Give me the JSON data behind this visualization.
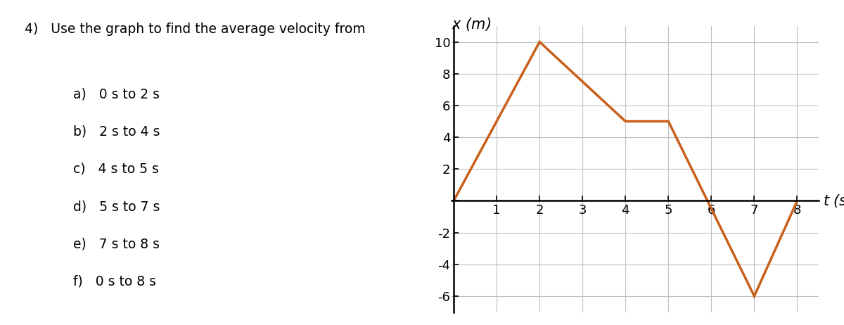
{
  "t_values": [
    0,
    2,
    4,
    5,
    7,
    8
  ],
  "x_values": [
    0,
    10,
    5,
    5,
    -6,
    0
  ],
  "line_color": "#C8601A",
  "line_width": 2.5,
  "xlim": [
    -0.05,
    8.5
  ],
  "ylim": [
    -7,
    11
  ],
  "xticks": [
    1,
    2,
    3,
    4,
    5,
    6,
    7,
    8
  ],
  "yticks": [
    -6,
    -4,
    -2,
    0,
    2,
    4,
    6,
    8,
    10
  ],
  "grid_color": "#c0c0c0",
  "background_color": "#ffffff",
  "text_fontsize": 13.5,
  "axis_label_fontsize": 15,
  "tick_fontsize": 13,
  "question_text": "4)   Use the graph to find the average velocity from",
  "parts": [
    "a)   0 s to 2 s",
    "b)   2 s to 4 s",
    "c)   4 s to 5 s",
    "d)   5 s to 7 s",
    "e)   7 s to 8 s",
    "f)   0 s to 8 s"
  ]
}
